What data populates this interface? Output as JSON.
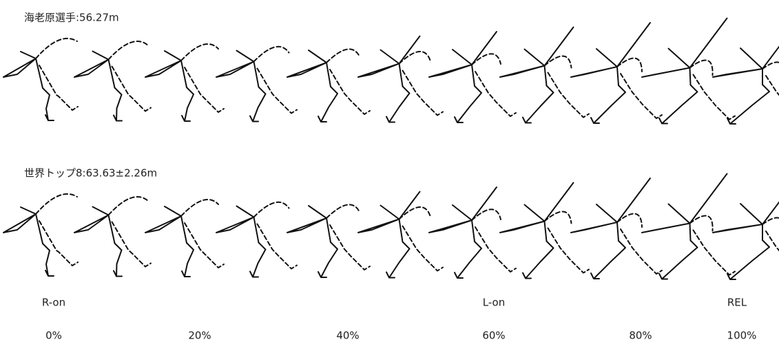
{
  "rows": [
    {
      "label": "海老原選手:56.27m"
    },
    {
      "label": "世界トップ8:63.63±2.26m"
    }
  ],
  "phases": [
    "R-on",
    "L-on",
    "REL"
  ],
  "percent_ticks": [
    "0%",
    "20%",
    "40%",
    "60%",
    "80%",
    "100%"
  ]
}
